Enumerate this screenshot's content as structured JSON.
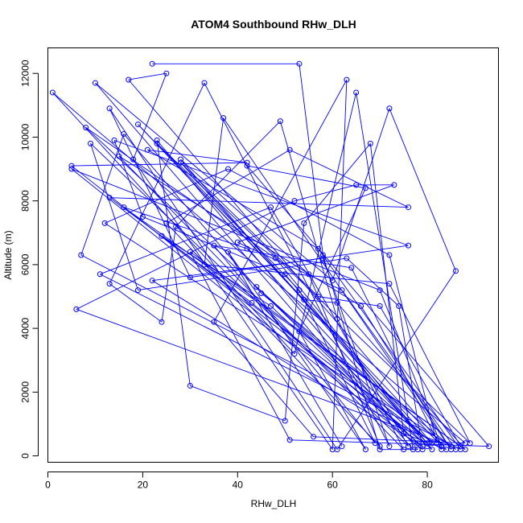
{
  "chart_data": {
    "type": "scatter",
    "title": "ATOM4 Southbound RHw_DLH",
    "xlabel": "RHw_DLH",
    "ylabel": "Altitude (m)",
    "xlim": [
      0,
      95
    ],
    "ylim": [
      -200,
      12800
    ],
    "xticks": [
      "0",
      "20",
      "40",
      "60",
      "80"
    ],
    "yticks": [
      "0",
      "2000",
      "4000",
      "6000",
      "8000",
      "10000",
      "12000"
    ],
    "series_color": "#0000ff",
    "connected": true,
    "grid": false,
    "series": [
      {
        "values": [
          [
            22,
            12300
          ],
          [
            53,
            12300
          ],
          [
            58,
            6300
          ],
          [
            70,
            200
          ],
          [
            78,
            200
          ],
          [
            23,
            9900
          ],
          [
            30,
            2200
          ],
          [
            50,
            1100
          ],
          [
            54,
            7300
          ],
          [
            68,
            9800
          ],
          [
            75,
            700
          ],
          [
            84,
            200
          ],
          [
            17,
            11800
          ],
          [
            25,
            12000
          ],
          [
            18,
            9300
          ],
          [
            60,
            200
          ],
          [
            63,
            11800
          ],
          [
            35,
            4200
          ],
          [
            56,
            600
          ],
          [
            88,
            400
          ],
          [
            1,
            11400
          ],
          [
            52,
            3200
          ],
          [
            65,
            11400
          ],
          [
            77,
            200
          ],
          [
            10,
            11700
          ],
          [
            60,
            5500
          ],
          [
            72,
            10900
          ],
          [
            86,
            5800
          ],
          [
            61,
            200
          ],
          [
            13,
            10900
          ],
          [
            30,
            5600
          ],
          [
            76,
            6600
          ],
          [
            14,
            9900
          ],
          [
            20,
            7500
          ],
          [
            50,
            5700
          ],
          [
            80,
            300
          ],
          [
            8,
            10300
          ],
          [
            48,
            6200
          ],
          [
            81,
            200
          ],
          [
            5,
            9100
          ],
          [
            42,
            9200
          ],
          [
            21,
            9600
          ],
          [
            57,
            6500
          ],
          [
            87,
            200
          ],
          [
            7,
            6300
          ],
          [
            16,
            10100
          ],
          [
            45,
            5100
          ],
          [
            85,
            300
          ],
          [
            6,
            4600
          ],
          [
            52,
            8000
          ],
          [
            65,
            8500
          ],
          [
            73,
            8500
          ],
          [
            40,
            6700
          ],
          [
            62,
            5200
          ],
          [
            86,
            200
          ],
          [
            12,
            7300
          ],
          [
            38,
            9000
          ],
          [
            72,
            6300
          ],
          [
            82,
            400
          ],
          [
            11,
            5700
          ],
          [
            47,
            7800
          ],
          [
            76,
            300
          ],
          [
            9,
            9800
          ],
          [
            19,
            5200
          ],
          [
            63,
            6200
          ],
          [
            74,
            4700
          ],
          [
            79,
            200
          ],
          [
            5,
            9000
          ],
          [
            70,
            5200
          ],
          [
            83,
            300
          ],
          [
            19,
            10400
          ],
          [
            54,
            4900
          ],
          [
            61,
            4800
          ],
          [
            88,
            200
          ],
          [
            16,
            7800
          ],
          [
            42,
            6500
          ],
          [
            80,
            400
          ],
          [
            28,
            9300
          ],
          [
            55,
            5700
          ],
          [
            70,
            300
          ],
          [
            25,
            7300
          ],
          [
            51,
            9600
          ],
          [
            76,
            7800
          ],
          [
            13,
            8100
          ],
          [
            43,
            4800
          ],
          [
            79,
            300
          ],
          [
            22,
            5500
          ],
          [
            58,
            6200
          ],
          [
            72,
            300
          ],
          [
            33,
            11700
          ],
          [
            13,
            5400
          ],
          [
            24,
            4200
          ],
          [
            27,
            7200
          ],
          [
            49,
            10500
          ],
          [
            61,
            4300
          ],
          [
            75,
            200
          ],
          [
            15,
            9400
          ],
          [
            66,
            4700
          ],
          [
            85,
            200
          ],
          [
            37,
            10600
          ],
          [
            33,
            6000
          ],
          [
            72,
            5400
          ],
          [
            89,
            400
          ],
          [
            23,
            9800
          ],
          [
            53,
            5200
          ],
          [
            69,
            400
          ],
          [
            35,
            6600
          ],
          [
            64,
            5900
          ],
          [
            83,
            200
          ],
          [
            24,
            6900
          ],
          [
            47,
            4700
          ],
          [
            78,
            400
          ],
          [
            44,
            5300
          ],
          [
            81,
            400
          ],
          [
            28,
            9200
          ],
          [
            57,
            5000
          ],
          [
            70,
            4700
          ],
          [
            87,
            300
          ],
          [
            30,
            6400
          ],
          [
            51,
            500
          ],
          [
            93,
            300
          ],
          [
            42,
            9100
          ],
          [
            67,
            8400
          ],
          [
            53,
            3900
          ],
          [
            67,
            200
          ],
          [
            38,
            6400
          ],
          [
            62,
            300
          ]
        ]
      }
    ]
  }
}
